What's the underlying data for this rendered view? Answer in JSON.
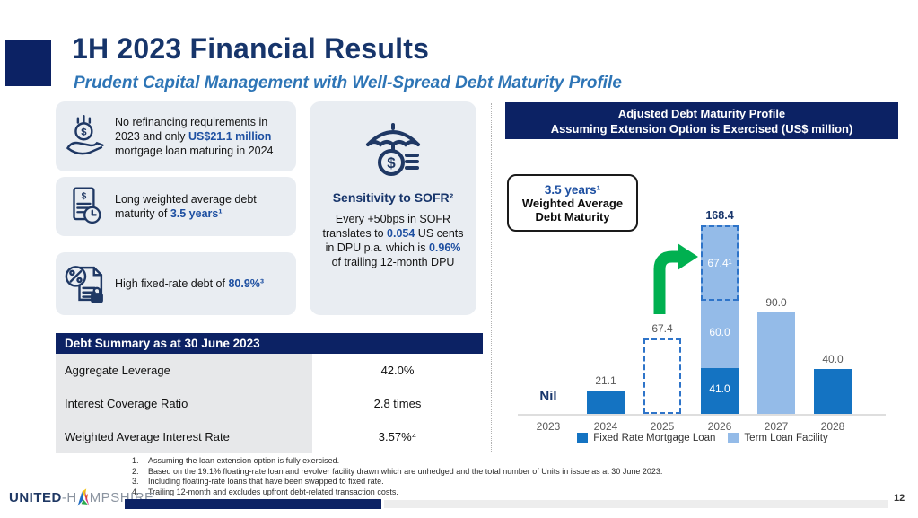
{
  "slide": {
    "title": "1H 2023 Financial Results",
    "subtitle": "Prudent Capital Management with Well-Spread Debt Maturity Profile",
    "page_number": "12"
  },
  "brand": {
    "part1": "UNITED",
    "sep": "-",
    "h": "H",
    "rest": "MPSHIRE"
  },
  "highlights": [
    {
      "icon": "money-hand-icon",
      "runs": [
        {
          "t": "No refinancing requirements in 2023 and only "
        },
        {
          "t": "US$21.1 million",
          "b": 1
        },
        {
          "t": " mortgage loan maturing in 2024"
        }
      ]
    },
    {
      "icon": "document-clock-icon",
      "runs": [
        {
          "t": "Long weighted average debt maturity of "
        },
        {
          "t": "3.5 years¹",
          "b": 1
        }
      ]
    },
    {
      "icon": "percent-lock-icon",
      "runs": [
        {
          "t": "High fixed-rate debt of "
        },
        {
          "t": "80.9%³",
          "b": 1
        }
      ]
    }
  ],
  "sofr": {
    "heading": "Sensitivity to SOFR²",
    "runs": [
      {
        "t": "Every +50bps in SOFR translates to "
      },
      {
        "t": "0.054",
        "b": 1
      },
      {
        "t": " US cents in DPU p.a. which is "
      },
      {
        "t": "0.96%",
        "b": 1
      },
      {
        "t": " of trailing 12-month DPU"
      }
    ]
  },
  "debt_summary": {
    "header": "Debt Summary as at 30 June 2023",
    "rows": [
      {
        "label": "Aggregate Leverage",
        "value": "42.0%"
      },
      {
        "label": "Interest Coverage Ratio",
        "value": "2.8 times"
      },
      {
        "label": "Weighted Average Interest Rate",
        "value": "3.57%⁴"
      }
    ]
  },
  "chart_data": {
    "type": "bar",
    "title_line1": "Adjusted Debt Maturity Profile",
    "title_line2": "Assuming Extension Option is Exercised (US$ million)",
    "ylabel": "US$ million",
    "ylim": [
      0,
      180
    ],
    "categories": [
      "2023",
      "2024",
      "2025",
      "2026",
      "2027",
      "2028"
    ],
    "annotation": {
      "line1": "3.5 years¹",
      "line2": "Weighted Average",
      "line3": "Debt Maturity"
    },
    "legend": [
      {
        "label": "Fixed Rate Mortgage Loan",
        "color": "#1473c2"
      },
      {
        "label": "Term Loan Facility",
        "color": "#94bbe8"
      }
    ],
    "bars": [
      {
        "category": "2023",
        "note": "Nil",
        "segments": []
      },
      {
        "category": "2024",
        "top_label": "21.1",
        "segments": [
          {
            "series": "Fixed Rate Mortgage Loan",
            "value": 21.1,
            "style": "solid-dark"
          }
        ]
      },
      {
        "category": "2025",
        "top_label": "67.4",
        "segments": [
          {
            "series": "Term Loan Facility (extension option)",
            "value": 67.4,
            "style": "dashed-outline"
          }
        ]
      },
      {
        "category": "2026",
        "top_label": "168.4",
        "emphasis": true,
        "segments": [
          {
            "series": "Fixed Rate Mortgage Loan",
            "value": 41.0,
            "label": "41.0",
            "style": "solid-dark"
          },
          {
            "series": "Term Loan Facility",
            "value": 60.0,
            "label": "60.0",
            "style": "solid-light"
          },
          {
            "series": "Term Loan Facility (extended)",
            "value": 67.4,
            "label": "67.4¹",
            "style": "dashed-light"
          }
        ]
      },
      {
        "category": "2027",
        "top_label": "90.0",
        "segments": [
          {
            "series": "Term Loan Facility",
            "value": 90.0,
            "style": "solid-light"
          }
        ]
      },
      {
        "category": "2028",
        "top_label": "40.0",
        "segments": [
          {
            "series": "Fixed Rate Mortgage Loan",
            "value": 40.0,
            "style": "solid-dark"
          }
        ]
      }
    ]
  },
  "footnotes": [
    {
      "n": "1.",
      "text": "Assuming the loan extension option is fully exercised."
    },
    {
      "n": "2.",
      "text": "Based on the 19.1% floating-rate loan and revolver facility drawn which are unhedged and the total number of Units in issue as at 30 June 2023."
    },
    {
      "n": "3.",
      "text": "Including floating-rate loans that have been swapped to fixed rate."
    },
    {
      "n": "4.",
      "text": "Trailing 12-month and excludes upfront debt-related transaction costs."
    }
  ],
  "colors": {
    "navy": "#0c2264",
    "title_navy": "#17356b",
    "accent_blue": "#1d4fa1",
    "subtitle_blue": "#2e75b6",
    "bar_dark": "#1473c2",
    "bar_light": "#94bbe8",
    "dashed_border": "#2e74c9",
    "arrow_green": "#00b050",
    "box_bg": "#e9edf2"
  }
}
